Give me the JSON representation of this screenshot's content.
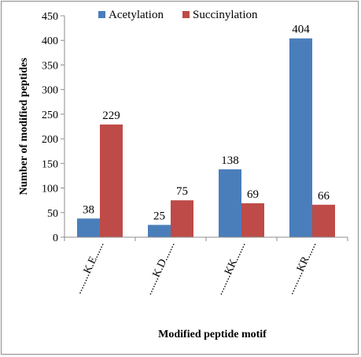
{
  "chart_data": {
    "type": "bar",
    "categories": [
      "........K.E......",
      ".......K.D.......",
      "........KK.......",
      ".........KR......"
    ],
    "series": [
      {
        "name": "Acetylation",
        "values": [
          38,
          25,
          138,
          404
        ],
        "color": "#4a7ebb"
      },
      {
        "name": "Succinylation",
        "values": [
          229,
          75,
          69,
          66
        ],
        "color": "#be4b48"
      }
    ],
    "xlabel": "Modified peptide motif",
    "ylabel": "Number of modified peptides",
    "ylim": [
      0,
      450
    ],
    "yticks": [
      0,
      50,
      100,
      150,
      200,
      250,
      300,
      350,
      400,
      450
    ],
    "legend_position": "top",
    "grid": false
  }
}
